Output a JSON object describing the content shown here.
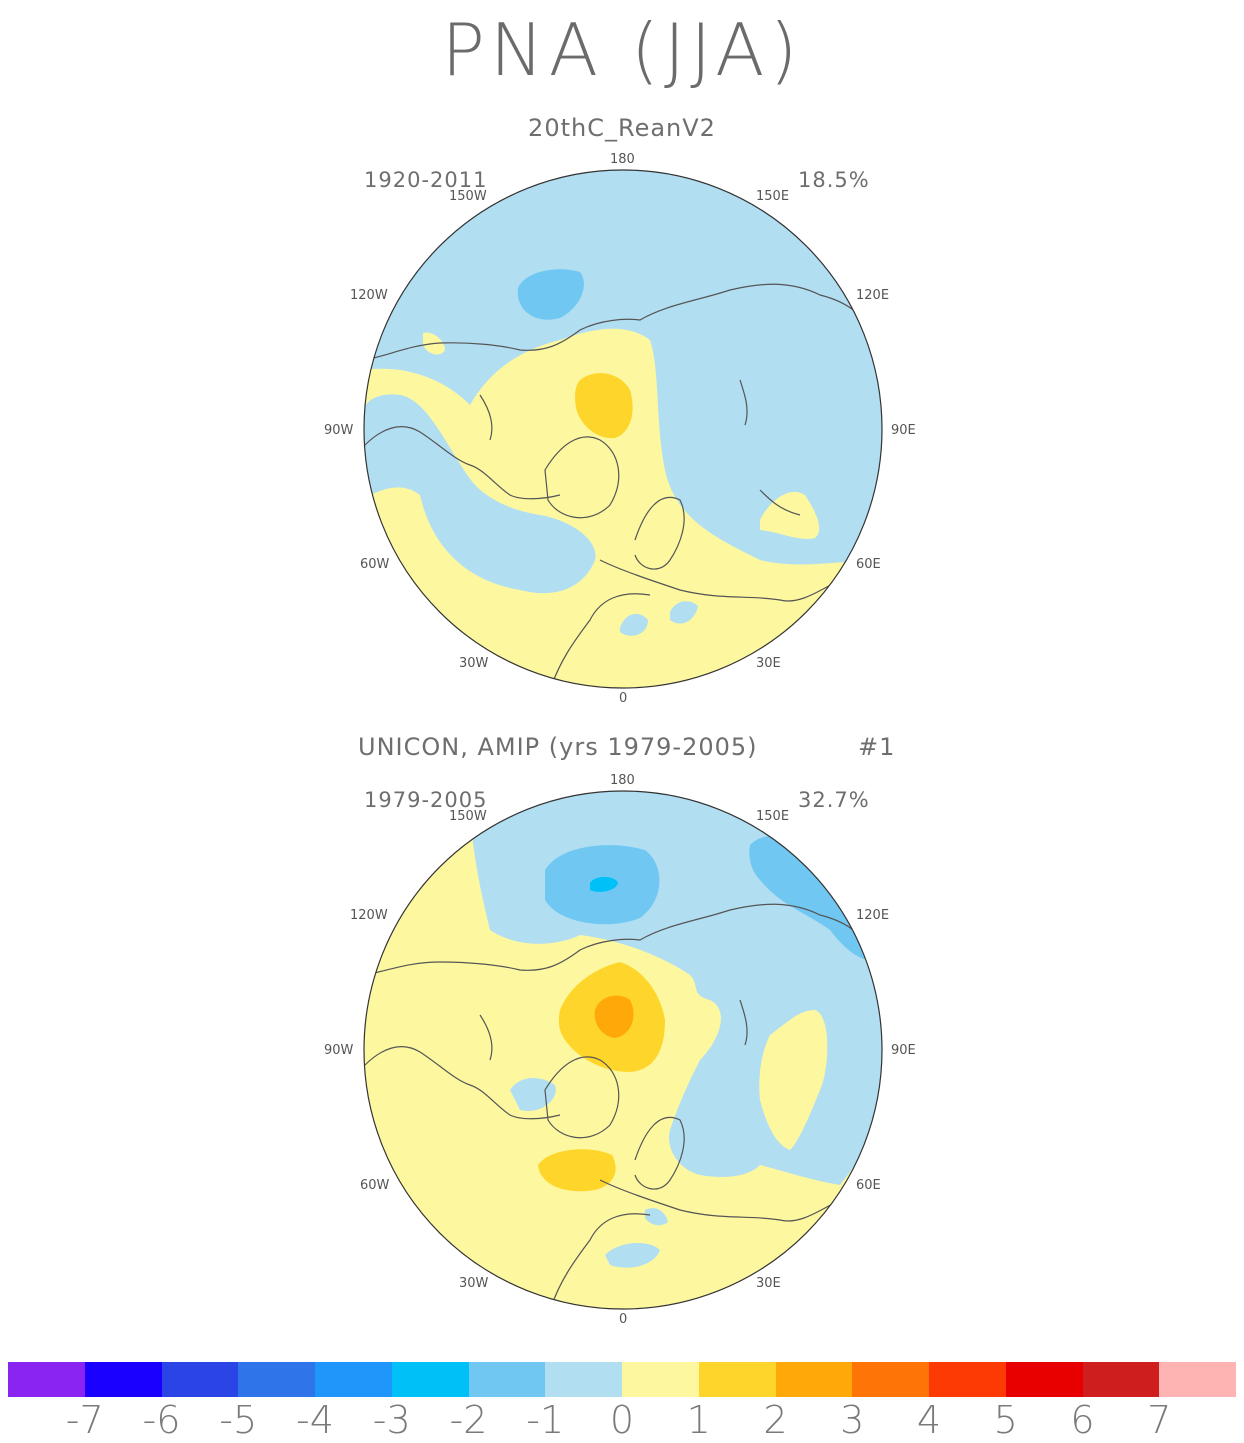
{
  "title": "PNA (JJA)",
  "panels": [
    {
      "label": "20thC_ReanV2",
      "years": "1920-2011",
      "percent": "18.5%",
      "lon_labels": {
        "n": "180",
        "nw": "150W",
        "ne": "150E",
        "wnw": "120W",
        "ene": "120E",
        "w": "90W",
        "e": "90E",
        "wsw": "60W",
        "ese": "60E",
        "sw": "30W",
        "se": "30E",
        "s": "0"
      }
    },
    {
      "label": "UNICON, AMIP (yrs 1979-2005)",
      "run": "#1",
      "years": "1979-2005",
      "percent": "32.7%",
      "lon_labels": {
        "n": "180",
        "nw": "150W",
        "ne": "150E",
        "wnw": "120W",
        "ene": "120E",
        "w": "90W",
        "e": "90E",
        "wsw": "60W",
        "ese": "60E",
        "sw": "30W",
        "se": "30E",
        "s": "0"
      }
    }
  ],
  "colorbar": {
    "colors": [
      "#8a24f0",
      "#1a00ff",
      "#2a44e6",
      "#2f74e8",
      "#1e96fa",
      "#00c0f8",
      "#70c8f2",
      "#b2def2",
      "#fdf8a0",
      "#fed52a",
      "#fea80a",
      "#fe7406",
      "#fe3a04",
      "#e80000",
      "#cf1e1e",
      "#ffb4b4"
    ],
    "ticks": [
      "-7",
      "-6",
      "-5",
      "-4",
      "-3",
      "-2",
      "-1",
      "0",
      "1",
      "2",
      "3",
      "4",
      "5",
      "6",
      "7"
    ]
  }
}
